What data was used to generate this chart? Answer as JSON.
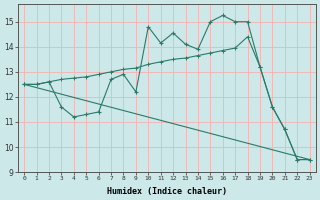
{
  "xlabel": "Humidex (Indice chaleur)",
  "bg_color": "#cce8e8",
  "grid_color": "#f0b8b8",
  "line_color": "#2a7a6a",
  "xlim": [
    -0.5,
    23.5
  ],
  "ylim": [
    9,
    15.7
  ],
  "yticks": [
    9,
    10,
    11,
    12,
    13,
    14,
    15
  ],
  "xticks": [
    0,
    1,
    2,
    3,
    4,
    5,
    6,
    7,
    8,
    9,
    10,
    11,
    12,
    13,
    14,
    15,
    16,
    17,
    18,
    19,
    20,
    21,
    22,
    23
  ],
  "line1_x": [
    0,
    1,
    2,
    3,
    4,
    5,
    6,
    7,
    8,
    9,
    10,
    11,
    12,
    13,
    14,
    15,
    16,
    17,
    18,
    19,
    20,
    21,
    22,
    23
  ],
  "line1_y": [
    12.5,
    12.5,
    12.6,
    11.6,
    11.2,
    11.3,
    11.4,
    12.7,
    12.9,
    12.2,
    14.8,
    14.15,
    14.55,
    14.1,
    13.9,
    15.0,
    15.25,
    15.0,
    15.0,
    13.2,
    11.6,
    10.7,
    9.5,
    9.5
  ],
  "line2_x": [
    0,
    1,
    2,
    3,
    4,
    5,
    6,
    7,
    8,
    9,
    10,
    11,
    12,
    13,
    14,
    15,
    16,
    17,
    18,
    19,
    20,
    21,
    22,
    23
  ],
  "line2_y": [
    12.5,
    12.5,
    12.6,
    12.7,
    12.75,
    12.8,
    12.9,
    13.0,
    13.1,
    13.15,
    13.3,
    13.4,
    13.5,
    13.55,
    13.65,
    13.75,
    13.85,
    13.95,
    14.4,
    13.2,
    11.6,
    10.7,
    9.5,
    9.5
  ],
  "line3_x": [
    0,
    23
  ],
  "line3_y": [
    12.5,
    9.5
  ]
}
